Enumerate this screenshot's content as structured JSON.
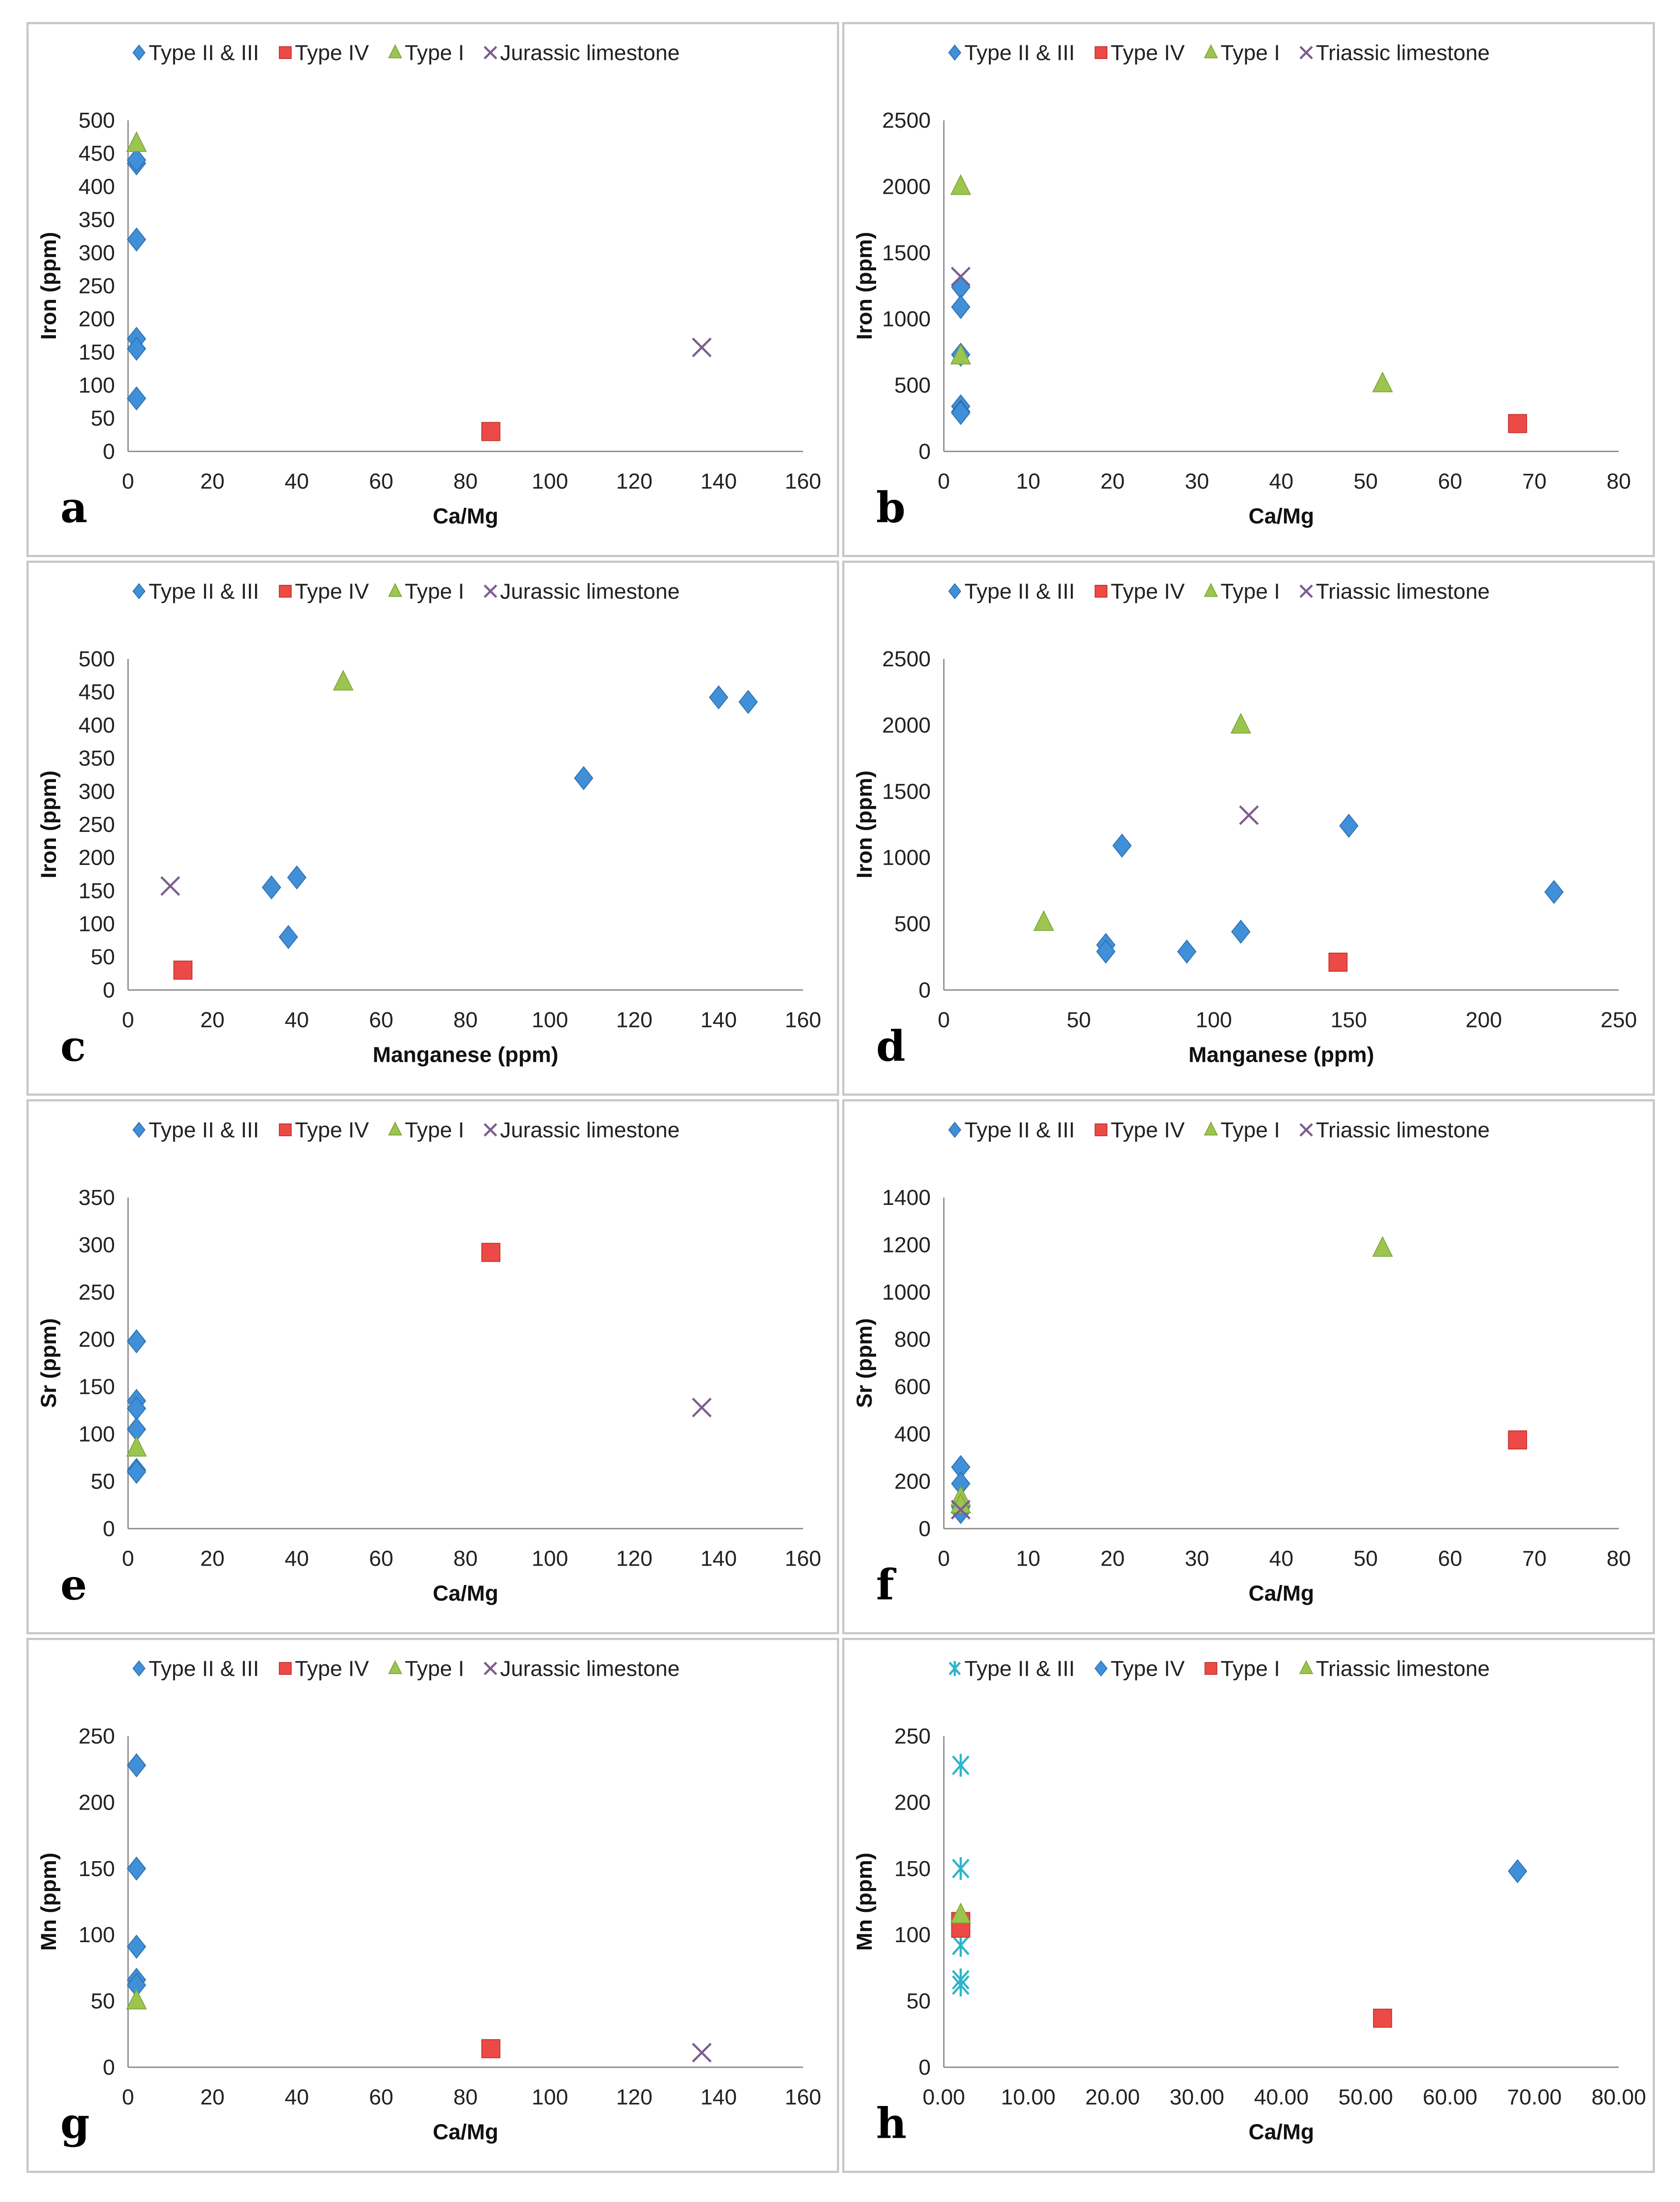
{
  "colors": {
    "diamond": "#3f90d8",
    "square": "#ec4a46",
    "triangle": "#9cc54e",
    "cross": "#7d5c8e",
    "asterisk": "#2db4c9"
  },
  "chart_data": [
    {
      "id": "a",
      "type": "scatter",
      "xlabel": "Ca/Mg",
      "ylabel": "Iron (ppm)",
      "xlim": [
        0,
        160
      ],
      "ylim": [
        0,
        500
      ],
      "xstep": 20,
      "ystep": 50,
      "xdecimals": 0,
      "legend": "top",
      "series": [
        {
          "name": "Type II & III",
          "marker": "diamond",
          "points": [
            [
              2,
              435
            ],
            [
              2,
              440
            ],
            [
              2,
              320
            ],
            [
              2,
              170
            ],
            [
              2,
              155
            ],
            [
              2,
              80
            ]
          ]
        },
        {
          "name": "Type IV",
          "marker": "square",
          "points": [
            [
              86,
              30
            ]
          ]
        },
        {
          "name": "Type I",
          "marker": "triangle",
          "points": [
            [
              2,
              465
            ]
          ]
        },
        {
          "name": "Jurassic limestone",
          "marker": "cross",
          "points": [
            [
              136,
              157
            ]
          ]
        }
      ]
    },
    {
      "id": "b",
      "type": "scatter",
      "xlabel": "Ca/Mg",
      "ylabel": "Iron (ppm)",
      "xlim": [
        0,
        80
      ],
      "ylim": [
        0,
        2500
      ],
      "xstep": 10,
      "ystep": 500,
      "xdecimals": 0,
      "legend": "top",
      "series": [
        {
          "name": "Type II & III",
          "marker": "diamond",
          "points": [
            [
              2,
              1240
            ],
            [
              2,
              1090
            ],
            [
              2,
              730
            ],
            [
              2,
              340
            ],
            [
              2,
              300
            ],
            [
              2,
              290
            ]
          ]
        },
        {
          "name": "Type IV",
          "marker": "square",
          "points": [
            [
              68,
              210
            ]
          ]
        },
        {
          "name": "Type I",
          "marker": "triangle",
          "points": [
            [
              2,
              2000
            ],
            [
              2,
              720
            ],
            [
              52,
              510
            ]
          ]
        },
        {
          "name": "Triassic limestone",
          "marker": "cross",
          "points": [
            [
              2,
              1320
            ]
          ]
        }
      ]
    },
    {
      "id": "c",
      "type": "scatter",
      "xlabel": "Manganese (ppm)",
      "ylabel": "Iron (ppm)",
      "xlim": [
        0,
        160
      ],
      "ylim": [
        0,
        500
      ],
      "xstep": 20,
      "ystep": 50,
      "xdecimals": 0,
      "legend": "top",
      "series": [
        {
          "name": "Type II & III",
          "marker": "diamond",
          "points": [
            [
              34,
              155
            ],
            [
              40,
              170
            ],
            [
              38,
              80
            ],
            [
              108,
              320
            ],
            [
              140,
              442
            ],
            [
              147,
              435
            ]
          ]
        },
        {
          "name": "Type IV",
          "marker": "square",
          "points": [
            [
              13,
              30
            ]
          ]
        },
        {
          "name": "Type I",
          "marker": "triangle",
          "points": [
            [
              51,
              465
            ]
          ]
        },
        {
          "name": "Jurassic limestone",
          "marker": "cross",
          "points": [
            [
              10,
              157
            ]
          ]
        }
      ]
    },
    {
      "id": "d",
      "type": "scatter",
      "xlabel": "Manganese (ppm)",
      "ylabel": "Iron (ppm)",
      "xlim": [
        0,
        250
      ],
      "ylim": [
        0,
        2500
      ],
      "xstep": 50,
      "ystep": 500,
      "xdecimals": 0,
      "legend": "top",
      "series": [
        {
          "name": "Type II & III",
          "marker": "diamond",
          "points": [
            [
              66,
              1090
            ],
            [
              60,
              340
            ],
            [
              60,
              290
            ],
            [
              90,
              290
            ],
            [
              110,
              440
            ],
            [
              150,
              1240
            ],
            [
              226,
              740
            ]
          ]
        },
        {
          "name": "Type IV",
          "marker": "square",
          "points": [
            [
              146,
              210
            ]
          ]
        },
        {
          "name": "Type I",
          "marker": "triangle",
          "points": [
            [
              110,
              2000
            ],
            [
              37,
              510
            ]
          ]
        },
        {
          "name": "Triassic limestone",
          "marker": "cross",
          "points": [
            [
              113,
              1320
            ]
          ]
        }
      ]
    },
    {
      "id": "e",
      "type": "scatter",
      "xlabel": "Ca/Mg",
      "ylabel": "Sr (ppm)",
      "xlim": [
        0,
        160
      ],
      "ylim": [
        0,
        350
      ],
      "xstep": 20,
      "ystep": 50,
      "xdecimals": 0,
      "legend": "top",
      "series": [
        {
          "name": "Type II & III",
          "marker": "diamond",
          "points": [
            [
              2,
              198
            ],
            [
              2,
              135
            ],
            [
              2,
              127
            ],
            [
              2,
              105
            ],
            [
              2,
              62
            ],
            [
              2,
              60
            ]
          ]
        },
        {
          "name": "Type IV",
          "marker": "square",
          "points": [
            [
              86,
              292
            ]
          ]
        },
        {
          "name": "Type I",
          "marker": "triangle",
          "points": [
            [
              2,
              85
            ]
          ]
        },
        {
          "name": "Jurassic limestone",
          "marker": "cross",
          "points": [
            [
              136,
              128
            ]
          ]
        }
      ]
    },
    {
      "id": "f",
      "type": "scatter",
      "xlabel": "Ca/Mg",
      "ylabel": "Sr (ppm)",
      "xlim": [
        0,
        80
      ],
      "ylim": [
        0,
        1400
      ],
      "xstep": 10,
      "ystep": 200,
      "xdecimals": 0,
      "legend": "top",
      "series": [
        {
          "name": "Type II & III",
          "marker": "diamond",
          "points": [
            [
              2,
              260
            ],
            [
              2,
              190
            ],
            [
              2,
              90
            ],
            [
              2,
              70
            ]
          ]
        },
        {
          "name": "Type IV",
          "marker": "square",
          "points": [
            [
              68,
              375
            ]
          ]
        },
        {
          "name": "Type I",
          "marker": "triangle",
          "points": [
            [
              52,
              1185
            ],
            [
              2,
              130
            ],
            [
              2,
              100
            ]
          ]
        },
        {
          "name": "Triassic limestone",
          "marker": "cross",
          "points": [
            [
              2,
              80
            ]
          ]
        }
      ]
    },
    {
      "id": "g",
      "type": "scatter",
      "xlabel": "Ca/Mg",
      "ylabel": "Mn (ppm)",
      "xlim": [
        0,
        160
      ],
      "ylim": [
        0,
        250
      ],
      "xstep": 20,
      "ystep": 50,
      "xdecimals": 0,
      "legend": "top",
      "series": [
        {
          "name": "Type II & III",
          "marker": "diamond",
          "points": [
            [
              2,
              228
            ],
            [
              2,
              150
            ],
            [
              2,
              91
            ],
            [
              2,
              66
            ],
            [
              2,
              62
            ]
          ]
        },
        {
          "name": "Type IV",
          "marker": "square",
          "points": [
            [
              86,
              14
            ]
          ]
        },
        {
          "name": "Type I",
          "marker": "triangle",
          "points": [
            [
              2,
              50
            ]
          ]
        },
        {
          "name": "Jurassic limestone",
          "marker": "cross",
          "points": [
            [
              136,
              11
            ]
          ]
        }
      ]
    },
    {
      "id": "h",
      "type": "scatter",
      "xlabel": "Ca/Mg",
      "ylabel": "Mn (ppm)",
      "xlim": [
        0,
        80
      ],
      "ylim": [
        0,
        250
      ],
      "xstep": 10,
      "ystep": 50,
      "xdecimals": 2,
      "legend": "top",
      "series": [
        {
          "name": "Type II & III",
          "marker": "asterisk",
          "points": [
            [
              2,
              228
            ],
            [
              2,
              150
            ],
            [
              2,
              92
            ],
            [
              2,
              66
            ],
            [
              2,
              62
            ]
          ]
        },
        {
          "name": "Type IV",
          "marker": "diamond",
          "points": [
            [
              68,
              148
            ]
          ]
        },
        {
          "name": "Type I",
          "marker": "square",
          "points": [
            [
              2,
              110
            ],
            [
              2,
              105
            ],
            [
              52,
              37
            ]
          ]
        },
        {
          "name": "Triassic limestone",
          "marker": "triangle",
          "points": [
            [
              2,
              115
            ]
          ]
        }
      ]
    }
  ]
}
